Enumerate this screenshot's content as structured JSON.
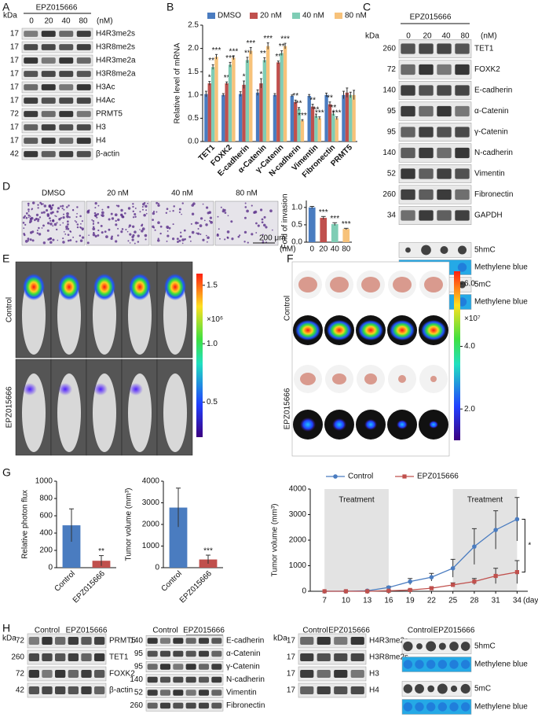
{
  "panel_labels": [
    "A",
    "B",
    "C",
    "D",
    "E",
    "F",
    "G",
    "H"
  ],
  "blot_a": {
    "unit": "kDa",
    "treatment": "EPZ015666",
    "doses": [
      "0",
      "20",
      "40",
      "80"
    ],
    "dose_unit": "(nM)",
    "rows": [
      {
        "kda": "17",
        "label": "H4R3me2s"
      },
      {
        "kda": "17",
        "label": "H3R8me2s"
      },
      {
        "kda": "17",
        "label": "H4R3me2a"
      },
      {
        "kda": "17",
        "label": "H3R8me2a"
      },
      {
        "kda": "17",
        "label": "H3Ac"
      },
      {
        "kda": "17",
        "label": "H4Ac"
      },
      {
        "kda": "72",
        "label": "PRMT5"
      },
      {
        "kda": "17",
        "label": "H3"
      },
      {
        "kda": "17",
        "label": "H4"
      },
      {
        "kda": "42",
        "label": "β-actin"
      }
    ]
  },
  "blot_c": {
    "unit": "kDa",
    "treatment": "EPZ015666",
    "doses": [
      "0",
      "20",
      "40",
      "80"
    ],
    "dose_unit": "(nM)",
    "rows": [
      {
        "kda": "260",
        "label": "TET1"
      },
      {
        "kda": "72",
        "label": "FOXK2"
      },
      {
        "kda": "140",
        "label": "E-cadherin"
      },
      {
        "kda": "95",
        "label": "α-Catenin"
      },
      {
        "kda": "95",
        "label": "γ-Catenin"
      },
      {
        "kda": "140",
        "label": "N-cadherin"
      },
      {
        "kda": "52",
        "label": "Vimentin"
      },
      {
        "kda": "260",
        "label": "Fibronectin"
      },
      {
        "kda": "34",
        "label": "GAPDH"
      }
    ],
    "dot_rows": [
      "5hmC",
      "Methylene blue",
      "5mC",
      "Methylene blue"
    ]
  },
  "invasion_images": {
    "labels": [
      "DMSO",
      "20 nM",
      "40 nM",
      "80 nM"
    ],
    "scale_bar": "200 μm"
  },
  "imaging_e": {
    "row_labels": [
      "Control",
      "EPZ015666"
    ],
    "colorbar_lim": [
      0.2,
      1.6
    ],
    "colorbar_ticks": [
      1.5,
      {
        "value": 1.0,
        "label": "1.0"
      },
      0.5
    ],
    "multiplier": "×10⁶"
  },
  "imaging_f": {
    "row_labels": [
      "Control",
      "EPZ015666"
    ],
    "colorbar_lim": [
      1.0,
      6.4
    ],
    "colorbar_ticks": [
      {
        "value": 6.0,
        "label": "6.0"
      },
      {
        "value": 4.0,
        "label": "4.0"
      },
      {
        "value": 2.0,
        "label": "2.0"
      }
    ],
    "multiplier": "×10⁷"
  },
  "blots_h": {
    "unit": "kDa",
    "group_labels": [
      "Control",
      "EPZ015666"
    ],
    "blots": [
      {
        "rows": [
          {
            "kda": "72",
            "label": "PRMT5"
          },
          {
            "kda": "260",
            "label": "TET1"
          },
          {
            "kda": "72",
            "label": "FOXK2"
          },
          {
            "kda": "42",
            "label": "β-actin"
          }
        ]
      },
      {
        "rows": [
          {
            "kda": "140",
            "label": "E-cadherin"
          },
          {
            "kda": "95",
            "label": "α-Catenin"
          },
          {
            "kda": "95",
            "label": "γ-Catenin"
          },
          {
            "kda": "140",
            "label": "N-cadherin"
          },
          {
            "kda": "52",
            "label": "Vimentin"
          },
          {
            "kda": "260",
            "label": "Fibronectin"
          }
        ]
      },
      {
        "rows": [
          {
            "kda": "17",
            "label": "H4R3me2s"
          },
          {
            "kda": "17",
            "label": "H3R8me2s"
          },
          {
            "kda": "17",
            "label": "H3"
          },
          {
            "kda": "17",
            "label": "H4"
          }
        ]
      }
    ],
    "dot_rows": [
      "5hmC",
      "Methylene blue",
      "5mC",
      "Methylene blue"
    ]
  },
  "chart_data": [
    {
      "type": "bar",
      "ylabel": "Relative level of mRNA",
      "categories": [
        "TET1",
        "FOXK2",
        "E-cadherin",
        "α-Catenin",
        "γ-Catenin",
        "N-cadherin",
        "Vimentin",
        "Fibronectin",
        "PRMT5"
      ],
      "series": [
        {
          "name": "DMSO",
          "color": "#4a7cc0",
          "values": [
            1.02,
            1.0,
            1.02,
            1.05,
            1.0,
            0.98,
            0.98,
            1.0,
            1.0
          ],
          "errors": [
            0.06,
            0.03,
            0.05,
            0.06,
            0.03,
            0.02,
            0.03,
            0.04,
            0.08
          ],
          "significance": [
            null,
            null,
            null,
            null,
            null,
            null,
            null,
            null,
            null
          ]
        },
        {
          "name": "20 nM",
          "color": "#c0504d",
          "values": [
            1.25,
            1.25,
            1.22,
            1.25,
            1.7,
            0.85,
            0.75,
            0.8,
            1.05
          ],
          "errors": [
            0.04,
            0.03,
            0.08,
            0.1,
            0.03,
            0.04,
            0.05,
            0.05,
            0.1
          ],
          "significance": [
            "*",
            "**",
            "*",
            "*",
            "**",
            "**",
            "**",
            "**",
            null
          ]
        },
        {
          "name": "40 nM",
          "color": "#7fcdb5",
          "values": [
            1.6,
            1.65,
            1.75,
            1.75,
            1.9,
            0.7,
            0.55,
            0.6,
            1.0
          ],
          "errors": [
            0.05,
            0.05,
            0.06,
            0.05,
            0.05,
            0.03,
            0.04,
            0.04,
            0.06
          ],
          "significance": [
            "***",
            "***",
            "**",
            "***",
            "**",
            "**",
            "**",
            "**",
            null
          ]
        },
        {
          "name": "80 nM",
          "color": "#f7c27a",
          "values": [
            1.82,
            1.8,
            1.95,
            2.05,
            2.05,
            0.45,
            0.5,
            0.5,
            1.0
          ],
          "errors": [
            0.05,
            0.04,
            0.07,
            0.07,
            0.06,
            0.02,
            0.03,
            0.03,
            0.1
          ],
          "significance": [
            "***",
            "***",
            "***",
            "***",
            "***",
            "***",
            "***",
            "***",
            null
          ]
        }
      ],
      "ylim": [
        0,
        2.5
      ],
      "yticks": [
        {
          "value": 0,
          "label": "0.0"
        },
        0.5,
        {
          "value": 1.0,
          "label": "1.0"
        },
        1.5,
        {
          "value": 2.0,
          "label": "2.0"
        },
        2.5
      ]
    },
    {
      "type": "bar",
      "ylabel": "Fold of invasion",
      "xlabel": "(nM)",
      "categories": [
        "0",
        "20",
        "40",
        "80"
      ],
      "values": [
        1.0,
        0.7,
        0.52,
        0.38
      ],
      "errors": [
        0.03,
        0.04,
        0.04,
        0.02
      ],
      "colors": [
        "#4a7cc0",
        "#c0504d",
        "#7fcdb5",
        "#f7c27a"
      ],
      "significance": [
        null,
        "***",
        "***",
        "***"
      ],
      "ylim": [
        0,
        1.2
      ],
      "yticks": [
        {
          "value": 0,
          "label": "0.0"
        },
        0.5,
        {
          "value": 1.0,
          "label": "1.0"
        }
      ]
    },
    {
      "type": "bar",
      "ylabel": "Relative photon flux",
      "categories": [
        "Control",
        "EPZ015666"
      ],
      "values": [
        490,
        80
      ],
      "errors": [
        190,
        60
      ],
      "colors": [
        "#4a7cc0",
        "#c0504d"
      ],
      "significance": [
        null,
        "**"
      ],
      "ylim": [
        0,
        1000
      ],
      "yticks": [
        0,
        200,
        400,
        600,
        800,
        1000
      ]
    },
    {
      "type": "bar",
      "ylabel": "Tumor volume (mm³)",
      "categories": [
        "Control",
        "EPZ015666"
      ],
      "values": [
        2780,
        380
      ],
      "errors": [
        900,
        200
      ],
      "colors": [
        "#4a7cc0",
        "#c0504d"
      ],
      "significance": [
        null,
        "***"
      ],
      "ylim": [
        0,
        4000
      ],
      "yticks": [
        0,
        1000,
        2000,
        3000,
        4000
      ]
    },
    {
      "type": "line",
      "ylabel": "Tumor volume (mm³)",
      "xlabel": "(day)",
      "x": [
        7,
        10,
        13,
        16,
        19,
        22,
        25,
        28,
        31,
        34
      ],
      "series": [
        {
          "name": "Control",
          "color": "#4a7cc0",
          "values": [
            0,
            0,
            20,
            150,
            380,
            550,
            900,
            1750,
            2400,
            2820
          ],
          "errors": [
            0,
            0,
            10,
            40,
            120,
            150,
            350,
            700,
            750,
            850
          ]
        },
        {
          "name": "EPZ015666",
          "color": "#c0504d",
          "values": [
            0,
            0,
            0,
            20,
            50,
            120,
            250,
            380,
            600,
            750
          ],
          "errors": [
            0,
            0,
            0,
            10,
            20,
            40,
            80,
            120,
            300,
            450
          ]
        }
      ],
      "treatment_periods": [
        [
          7,
          16
        ],
        [
          25,
          34
        ]
      ],
      "annotations": [
        "Treatment",
        "Treatment"
      ],
      "significance": "*",
      "xlim": [
        5,
        35.5
      ],
      "xticks": [
        7,
        10,
        13,
        16,
        19,
        22,
        25,
        28,
        31,
        34
      ],
      "ylim": [
        0,
        4000
      ],
      "yticks": [
        0,
        1000,
        2000,
        3000,
        4000
      ],
      "legend": "top"
    }
  ]
}
